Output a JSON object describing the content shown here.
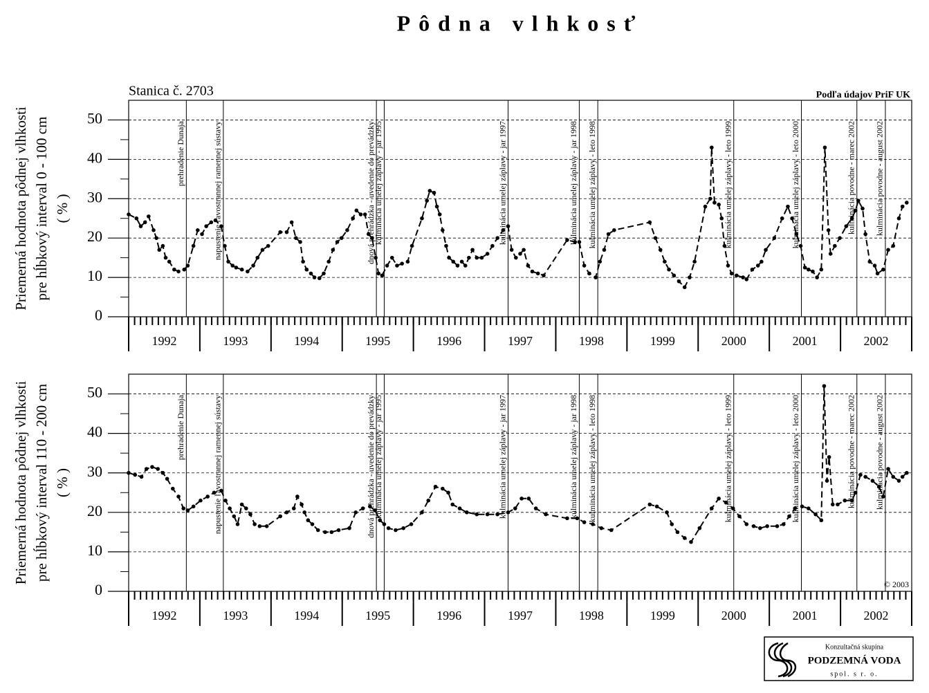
{
  "title": "Pôdna vlhkosť",
  "station": "Stanica č. 2703",
  "source": "Podľa údajov PriF UK",
  "copyright": "© 2003",
  "logo": {
    "line1": "Konzultačná skupina",
    "line2": "PODZEMNÁ VODA",
    "line3": "spol. s r. o."
  },
  "events": [
    {
      "x": 1992.81,
      "label": "prehradenie Dunaja"
    },
    {
      "x": 1993.33,
      "label": "napustenie ľavostrannej ramennej sústavy"
    },
    {
      "x": 1995.48,
      "label": "dnová prehrádzka - uvedenie do prevádzky"
    },
    {
      "x": 1995.59,
      "label": "kulminácia umelej záplavy - jar 1995"
    },
    {
      "x": 1997.33,
      "label": "kulminácia umelej záplavy - jar 1997"
    },
    {
      "x": 1998.33,
      "label": "kulminácia umelej záplavy - jar 1998"
    },
    {
      "x": 1998.59,
      "label": "kulminácia umelej záplavy - leto 1998"
    },
    {
      "x": 2000.5,
      "label": "kulminácia umelej záplavy - leto 1999"
    },
    {
      "x": 2001.45,
      "label": "kulminácia umelej záplavy - leto 2000"
    },
    {
      "x": 2002.23,
      "label": "kulminácia povodne - marec 2002"
    },
    {
      "x": 2002.63,
      "label": "kulminácia povodne - august 2002"
    }
  ],
  "chart_data": [
    {
      "type": "line",
      "ylabel": [
        "Priemerná hodnota pôdnej vlhkosti",
        "pre hĺbkový interval 0 - 100 cm",
        "( % )"
      ],
      "xlim": [
        1992,
        2003
      ],
      "ylim": [
        0,
        55
      ],
      "yticks": [
        0,
        10,
        20,
        30,
        40,
        50
      ],
      "xticks": [
        {
          "value": 1992,
          "label": "1992"
        },
        {
          "value": 1993,
          "label": "1993"
        },
        {
          "value": 1994,
          "label": "1994"
        },
        {
          "value": 1995,
          "label": "1995"
        },
        {
          "value": 1996,
          "label": "1996"
        },
        {
          "value": 1997,
          "label": "1997"
        },
        {
          "value": 1998,
          "label": "1998"
        },
        {
          "value": 1999,
          "label": "1999"
        },
        {
          "value": 2000,
          "label": "2000"
        },
        {
          "value": 2001,
          "label": "2001"
        },
        {
          "value": 2002,
          "label": "2002"
        }
      ],
      "grid": true,
      "color": "#000000",
      "x": [
        1992.0,
        1992.11,
        1992.17,
        1992.23,
        1992.28,
        1992.35,
        1992.39,
        1992.43,
        1992.48,
        1992.52,
        1992.57,
        1992.64,
        1992.7,
        1992.78,
        1992.83,
        1992.91,
        1992.97,
        1993.03,
        1993.09,
        1993.16,
        1993.22,
        1993.3,
        1993.35,
        1993.4,
        1993.46,
        1993.51,
        1993.59,
        1993.67,
        1993.75,
        1993.81,
        1993.88,
        1993.96,
        1994.13,
        1994.22,
        1994.29,
        1994.35,
        1994.41,
        1994.45,
        1994.5,
        1994.56,
        1994.61,
        1994.68,
        1994.74,
        1994.81,
        1994.87,
        1994.93,
        1994.99,
        1995.07,
        1995.15,
        1995.2,
        1995.26,
        1995.32,
        1995.37,
        1995.42,
        1995.47,
        1995.51,
        1995.56,
        1995.63,
        1995.7,
        1995.77,
        1995.84,
        1995.92,
        1995.98,
        1996.12,
        1996.19,
        1996.23,
        1996.29,
        1996.33,
        1996.37,
        1996.41,
        1996.46,
        1996.5,
        1996.56,
        1996.62,
        1996.68,
        1996.73,
        1996.78,
        1996.83,
        1996.89,
        1996.96,
        1997.04,
        1997.11,
        1997.18,
        1997.26,
        1997.33,
        1997.38,
        1997.44,
        1997.5,
        1997.55,
        1997.61,
        1997.67,
        1997.75,
        1997.83,
        1998.16,
        1998.27,
        1998.33,
        1998.4,
        1998.47,
        1998.56,
        1998.62,
        1998.68,
        1998.74,
        1998.82,
        1999.32,
        1999.4,
        1999.47,
        1999.53,
        1999.59,
        1999.66,
        1999.73,
        1999.81,
        1999.88,
        1999.95,
        2000.1,
        2000.17,
        2000.19,
        2000.23,
        2000.29,
        2000.33,
        2000.37,
        2000.42,
        2000.47,
        2000.54,
        2000.63,
        2000.68,
        2000.76,
        2000.84,
        2000.89,
        2000.95,
        2001.07,
        2001.18,
        2001.26,
        2001.32,
        2001.38,
        2001.44,
        2001.5,
        2001.55,
        2001.61,
        2001.67,
        2001.73,
        2001.78,
        2001.83,
        2001.86,
        2001.92,
        2001.99,
        2002.08,
        2002.16,
        2002.21,
        2002.25,
        2002.31,
        2002.35,
        2002.41,
        2002.48,
        2002.52,
        2002.6,
        2002.67,
        2002.74,
        2002.82,
        2002.87,
        2002.93
      ],
      "values": [
        26,
        25,
        23,
        24,
        25.5,
        22,
        20,
        17,
        18,
        15,
        14,
        12,
        11.5,
        12,
        13,
        18,
        22,
        21,
        23,
        24,
        24.5,
        23,
        18,
        14,
        13,
        12.5,
        12,
        11.5,
        13,
        15,
        17,
        18,
        21.5,
        21.5,
        24,
        20,
        19,
        14,
        12,
        11,
        10,
        9.8,
        11,
        14,
        17,
        19,
        20,
        22,
        25,
        27,
        26,
        26,
        21,
        20,
        15,
        11,
        10.5,
        13,
        15,
        13,
        13.5,
        14,
        18,
        25,
        29.5,
        32,
        31.5,
        28,
        26,
        22,
        18,
        15,
        14,
        13,
        14,
        13,
        15,
        17,
        15,
        15,
        16,
        18,
        20,
        22,
        23,
        17,
        15,
        16,
        17,
        13,
        11.5,
        11,
        10.5,
        19.5,
        19,
        19,
        13,
        11,
        10,
        14,
        17,
        21,
        22,
        24,
        20,
        17,
        14,
        12,
        10.5,
        9,
        7.5,
        10,
        14,
        28,
        30,
        43,
        29,
        28.5,
        25,
        18,
        13,
        11,
        10.5,
        10,
        9.5,
        12,
        13,
        14,
        17,
        20,
        25,
        28,
        25,
        21,
        18,
        12.5,
        12,
        11.5,
        10,
        12,
        43,
        22,
        16,
        18,
        20,
        23,
        25,
        27,
        29.5,
        27.5,
        21,
        14,
        13,
        11,
        12,
        17,
        18,
        25,
        28,
        29
      ]
    },
    {
      "type": "line",
      "ylabel": [
        "Priemerná hodnota pôdnej vlhkosti",
        "pre hĺbkový interval 110 - 200 cm",
        "( % )"
      ],
      "xlim": [
        1992,
        2003
      ],
      "ylim": [
        0,
        55
      ],
      "yticks": [
        0,
        10,
        20,
        30,
        40,
        50
      ],
      "xticks": [
        {
          "value": 1992,
          "label": "1992"
        },
        {
          "value": 1993,
          "label": "1993"
        },
        {
          "value": 1994,
          "label": "1994"
        },
        {
          "value": 1995,
          "label": "1995"
        },
        {
          "value": 1996,
          "label": "1996"
        },
        {
          "value": 1997,
          "label": "1997"
        },
        {
          "value": 1998,
          "label": "1998"
        },
        {
          "value": 1999,
          "label": "1999"
        },
        {
          "value": 2000,
          "label": "2000"
        },
        {
          "value": 2001,
          "label": "2001"
        },
        {
          "value": 2002,
          "label": "2002"
        }
      ],
      "grid": true,
      "color": "#000000",
      "x": [
        1992.0,
        1992.09,
        1992.18,
        1992.25,
        1992.33,
        1992.41,
        1992.48,
        1992.54,
        1992.62,
        1992.7,
        1992.77,
        1992.83,
        1992.91,
        1993.01,
        1993.11,
        1993.2,
        1993.3,
        1993.36,
        1993.42,
        1993.48,
        1993.53,
        1993.59,
        1993.65,
        1993.71,
        1993.77,
        1993.84,
        1993.94,
        1994.13,
        1994.22,
        1994.32,
        1994.37,
        1994.43,
        1994.47,
        1994.52,
        1994.58,
        1994.66,
        1994.76,
        1994.85,
        1994.95,
        1995.1,
        1995.19,
        1995.29,
        1995.39,
        1995.46,
        1995.53,
        1995.59,
        1995.65,
        1995.75,
        1995.86,
        1995.97,
        1996.12,
        1996.21,
        1996.31,
        1996.41,
        1996.49,
        1996.55,
        1996.65,
        1996.75,
        1996.89,
        1997.04,
        1997.18,
        1997.33,
        1997.43,
        1997.52,
        1997.62,
        1997.72,
        1997.86,
        1998.16,
        1998.3,
        1998.4,
        1998.52,
        1998.64,
        1998.78,
        1999.32,
        1999.42,
        1999.56,
        1999.63,
        1999.71,
        1999.81,
        1999.9,
        2000.02,
        2000.19,
        2000.29,
        2000.39,
        2000.49,
        2000.58,
        2000.68,
        2000.78,
        2000.87,
        2000.97,
        2001.11,
        2001.2,
        2001.28,
        2001.36,
        2001.46,
        2001.55,
        2001.65,
        2001.73,
        2001.77,
        2001.81,
        2001.84,
        2001.89,
        2001.96,
        2002.06,
        2002.16,
        2002.21,
        2002.28,
        2002.35,
        2002.45,
        2002.54,
        2002.6,
        2002.67,
        2002.74,
        2002.82,
        2002.87,
        2002.93
      ],
      "values": [
        30,
        29.5,
        29,
        31,
        31.5,
        31,
        30,
        28.5,
        26,
        24,
        21,
        20.5,
        21.5,
        23,
        24,
        25,
        25.5,
        23,
        21,
        19,
        17,
        22,
        21,
        19.5,
        17,
        16.5,
        16.5,
        19,
        20,
        21,
        24,
        22,
        20,
        18,
        17,
        15.5,
        15,
        15,
        15.5,
        16,
        20,
        21,
        21.5,
        20.5,
        18,
        17,
        16,
        15.5,
        16,
        17,
        20,
        23,
        26.5,
        26,
        25,
        22,
        21,
        20,
        19.5,
        19.5,
        19.5,
        20,
        21,
        23.5,
        23.5,
        21,
        19.5,
        18.5,
        18.5,
        17.5,
        17,
        16,
        15.5,
        22,
        21.5,
        20,
        17,
        15,
        13.5,
        12.5,
        16,
        21,
        23.5,
        22.5,
        21,
        19,
        17,
        16.5,
        16,
        16.5,
        16.5,
        17,
        19,
        21,
        21.5,
        21,
        19.5,
        18,
        52,
        28,
        34,
        22,
        22,
        23,
        23,
        25,
        29.5,
        29,
        28,
        26.5,
        24,
        31,
        29,
        28,
        29,
        30
      ]
    }
  ]
}
